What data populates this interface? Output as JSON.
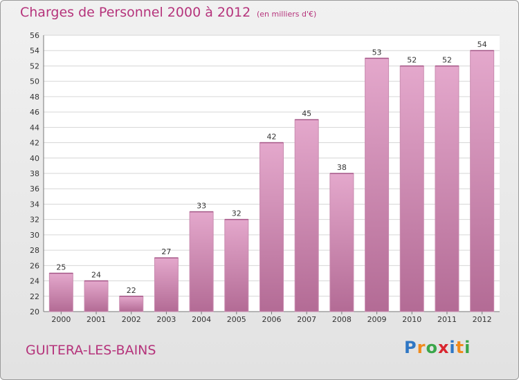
{
  "chart_data": {
    "type": "bar",
    "title": "Charges de Personnel 2000 à 2012",
    "subtitle": "(en milliers d'€)",
    "categories": [
      "2000",
      "2001",
      "2002",
      "2003",
      "2004",
      "2005",
      "2006",
      "2007",
      "2008",
      "2009",
      "2010",
      "2011",
      "2012"
    ],
    "values": [
      25,
      24,
      22,
      27,
      33,
      32,
      42,
      45,
      38,
      53,
      52,
      52,
      54
    ],
    "ylim": [
      20,
      56
    ],
    "yticks": [
      20,
      22,
      24,
      26,
      28,
      30,
      32,
      34,
      36,
      38,
      40,
      42,
      44,
      46,
      48,
      50,
      52,
      54,
      56
    ],
    "grid": true,
    "bar_color": "#d98fbc"
  },
  "commune": "GUITERA-LES-BAINS",
  "logo": {
    "letters": [
      "P",
      "r",
      "o",
      "x",
      "i",
      "t",
      "i"
    ],
    "colors": [
      "#2f77c5",
      "#f08a1c",
      "#3aa64a",
      "#d9262f",
      "#2f77c5",
      "#f08a1c",
      "#3aa64a"
    ]
  }
}
